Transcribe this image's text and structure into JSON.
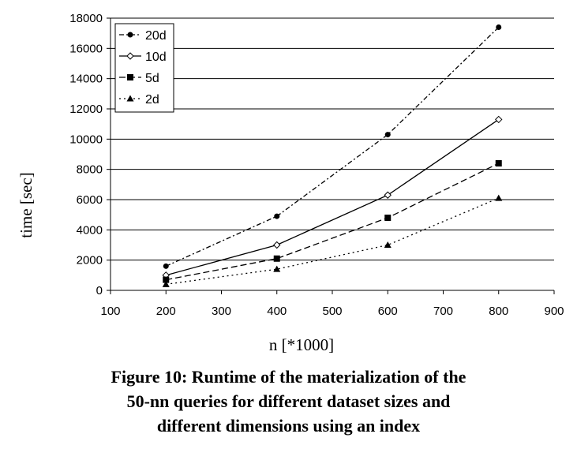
{
  "chart_data": {
    "type": "line",
    "xlabel": "n [*1000]",
    "ylabel": "time [sec]",
    "xlim": [
      100,
      900
    ],
    "ylim": [
      0,
      18000
    ],
    "xticks": [
      100,
      200,
      300,
      400,
      500,
      600,
      700,
      800,
      900
    ],
    "yticks": [
      0,
      2000,
      4000,
      6000,
      8000,
      10000,
      12000,
      14000,
      16000,
      18000
    ],
    "grid": "horizontal major lines",
    "legend_position": "top-left",
    "x": [
      200,
      400,
      600,
      800
    ],
    "series": [
      {
        "name": "20d",
        "values": [
          1600,
          4900,
          10300,
          17400
        ],
        "marker": "circle",
        "line_style": "dash-dot"
      },
      {
        "name": "10d",
        "values": [
          1000,
          3000,
          6300,
          11300
        ],
        "marker": "open-diamond",
        "line_style": "solid"
      },
      {
        "name": "5d",
        "values": [
          700,
          2100,
          4800,
          8400
        ],
        "marker": "square",
        "line_style": "dashed"
      },
      {
        "name": "2d",
        "values": [
          400,
          1400,
          3000,
          6100
        ],
        "marker": "triangle",
        "line_style": "dotted"
      }
    ]
  },
  "caption": {
    "line1": "Figure 10: Runtime of the materialization of the",
    "line2": "50-nn queries for different dataset sizes and",
    "line3": "different dimensions using an index"
  }
}
